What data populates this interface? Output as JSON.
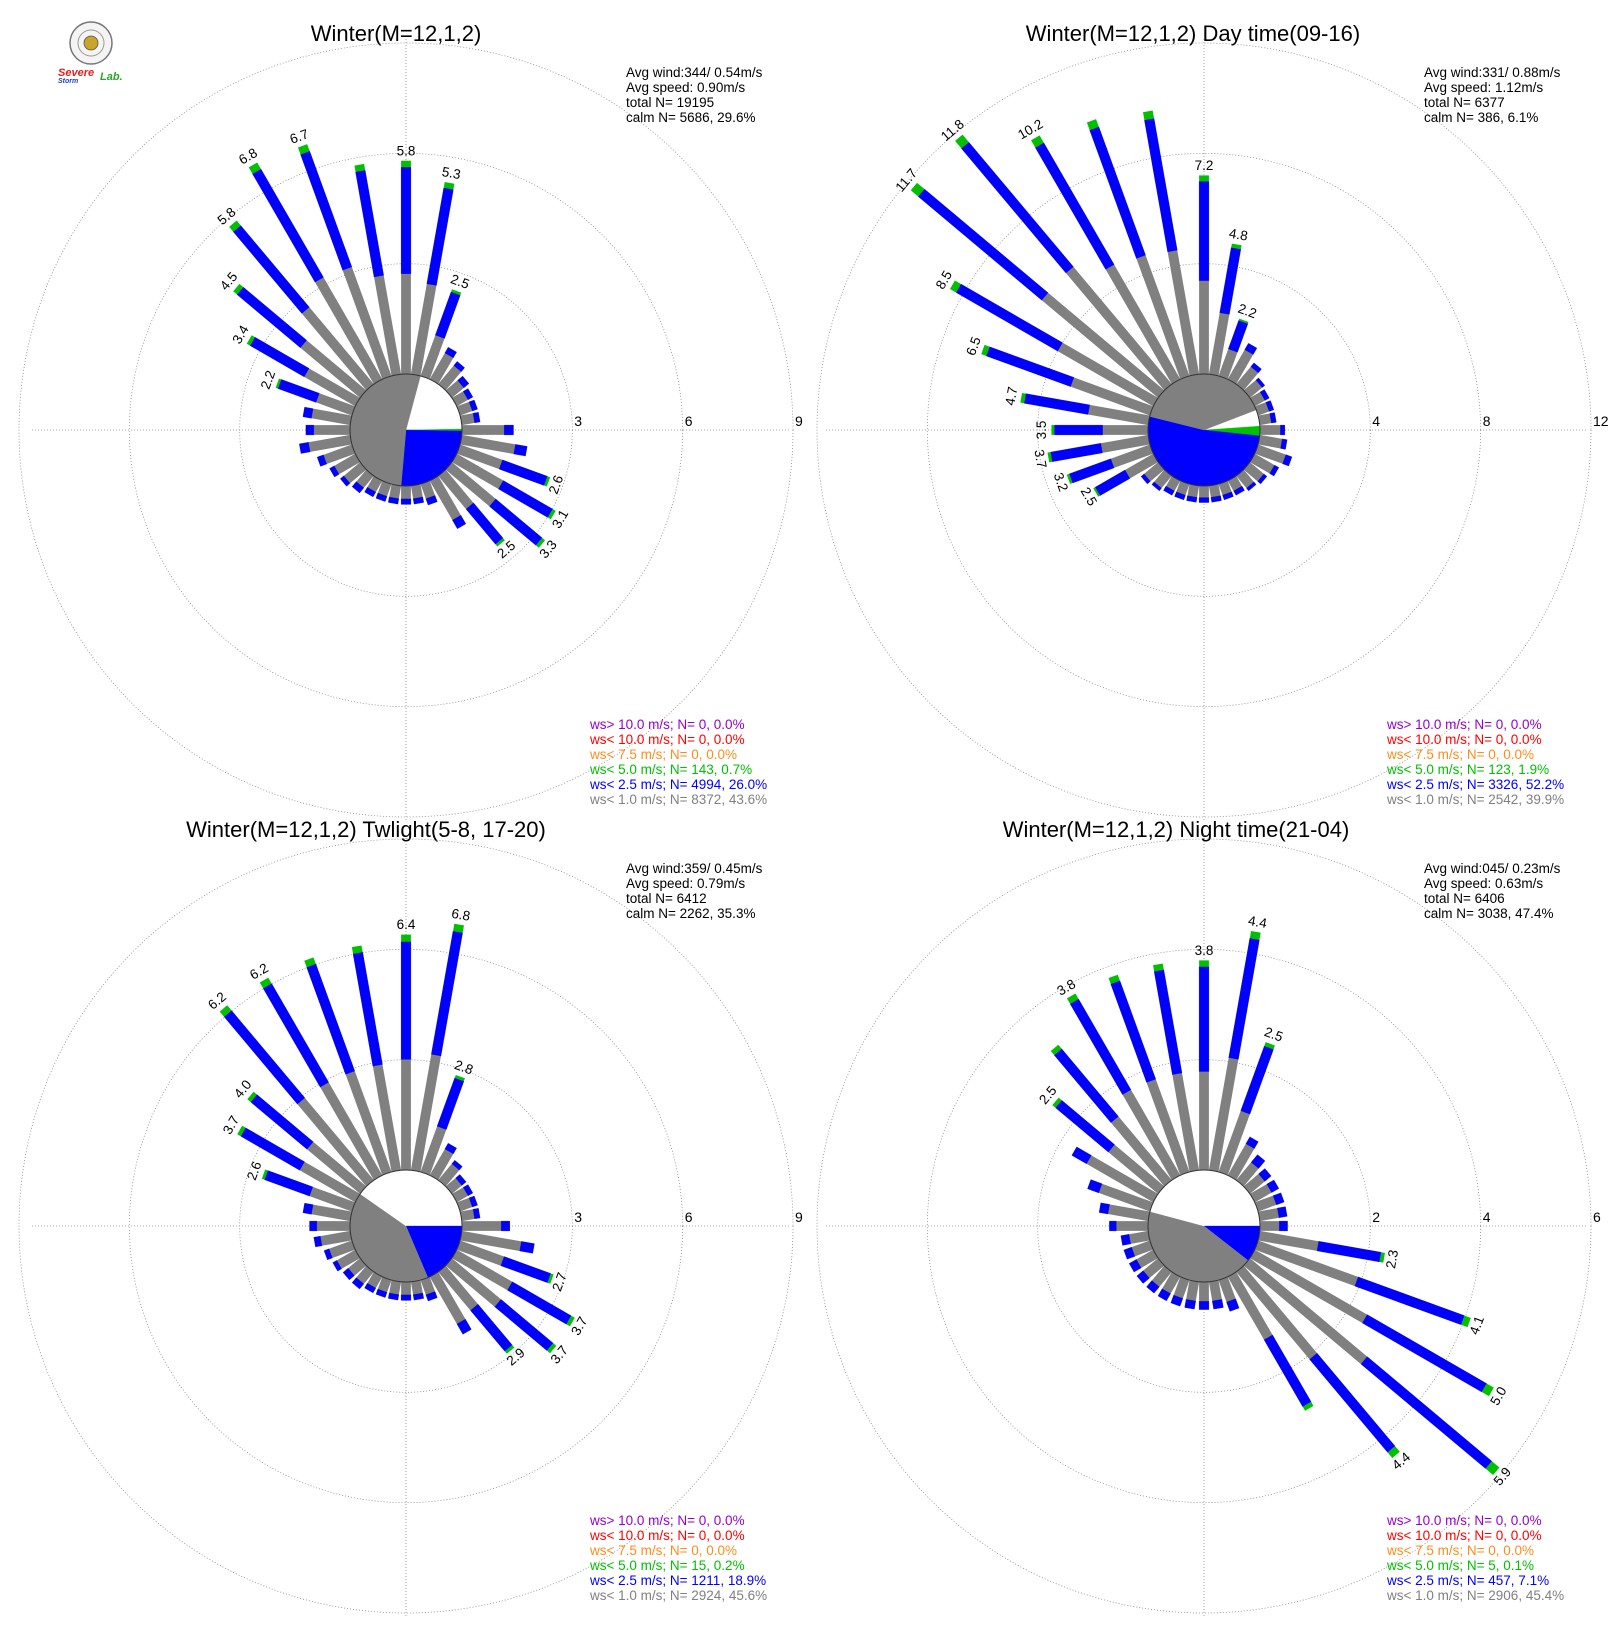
{
  "logo": {
    "text": "Severe Storm Lab.",
    "colors": {
      "severe": "#e0201c",
      "storm": "#1a3fd0",
      "lab": "#2aa52a",
      "seal": "#c9a52a"
    }
  },
  "colors": {
    "calm_fill": "#ffffff",
    "grid": "#8a8a8a",
    "ws_gt_10": "#9400d3",
    "ws_lt_10": "#ff0000",
    "ws_lt_7_5": "#ff8c1a",
    "ws_lt_5": "#00c000",
    "ws_lt_2_5": "#0000ff",
    "ws_lt_1": "#808080"
  },
  "chart_data": [
    {
      "type": "wind-rose",
      "title": "Winter(M=12,1,2)",
      "stats": [
        "Avg wind:344/ 0.54m/s",
        "Avg speed: 0.90m/s",
        "total N=      19195",
        "calm N=   5686,  29.6%"
      ],
      "ring_ticks": [
        "3",
        "6",
        "9"
      ],
      "r_max": 9,
      "direction_bins": 36,
      "frequencies_percent": [
        5.8,
        5.3,
        2.5,
        1.0,
        0.8,
        0.6,
        0.5,
        0.5,
        0.5,
        1.4,
        1.8,
        2.6,
        3.1,
        3.3,
        2.5,
        1.5,
        0.6,
        0.5,
        0.5,
        0.5,
        0.5,
        0.5,
        0.6,
        0.7,
        0.8,
        1.0,
        1.4,
        1.2,
        1.3,
        2.2,
        3.4,
        4.5,
        5.8,
        6.8,
        6.7,
        5.8
      ],
      "labeled_bins": [
        0,
        1,
        2,
        11,
        12,
        13,
        14,
        29,
        30,
        31,
        32,
        33,
        34
      ],
      "calm_sectors": [
        {
          "color": "#ffffff",
          "start": 15,
          "end": 89
        },
        {
          "color": "#00c000",
          "start": 89,
          "end": 91
        },
        {
          "color": "#0000ff",
          "start": 91,
          "end": 185
        },
        {
          "color": "#808080",
          "start": 185,
          "end": 375
        }
      ],
      "legend": [
        "ws> 10.0 m/s; N=     0,  0.0%",
        "ws< 10.0 m/s; N=     0,  0.0%",
        "ws<  7.5 m/s; N=     0,  0.0%",
        "ws<  5.0 m/s; N=   143,  0.7%",
        "ws<  2.5 m/s; N=  4994, 26.0%",
        "ws<  1.0 m/s; N=  8372, 43.6%"
      ]
    },
    {
      "type": "wind-rose",
      "title": "Winter(M=12,1,2) Day time(09-16)",
      "stats": [
        "Avg wind:331/ 0.88m/s",
        "Avg speed: 1.12m/s",
        "total N=       6377",
        "calm N=    386,   6.1%"
      ],
      "ring_ticks": [
        "4",
        "8",
        "12"
      ],
      "r_max": 12,
      "direction_bins": 36,
      "frequencies_percent": [
        7.2,
        4.8,
        2.2,
        1.5,
        1.0,
        0.7,
        0.6,
        0.6,
        0.6,
        0.9,
        1.0,
        1.3,
        1.0,
        0.8,
        0.7,
        0.6,
        0.6,
        0.6,
        0.6,
        0.6,
        0.6,
        0.6,
        0.7,
        0.8,
        2.5,
        3.2,
        3.7,
        3.5,
        4.7,
        6.5,
        8.5,
        11.7,
        11.8,
        10.2,
        9.9,
        9.7
      ],
      "labeled_bins": [
        0,
        1,
        2,
        24,
        25,
        26,
        27,
        28,
        29,
        30,
        31,
        32,
        33
      ],
      "calm_sectors": [
        {
          "color": "#ffffff",
          "start": 69,
          "end": 86
        },
        {
          "color": "#00c000",
          "start": 86,
          "end": 96
        },
        {
          "color": "#0000ff",
          "start": 96,
          "end": 284
        },
        {
          "color": "#808080",
          "start": 284,
          "end": 429
        }
      ],
      "legend": [
        "ws> 10.0 m/s; N=     0,  0.0%",
        "ws< 10.0 m/s; N=     0,  0.0%",
        "ws<  7.5 m/s; N=     0,  0.0%",
        "ws<  5.0 m/s; N=   123,  1.9%",
        "ws<  2.5 m/s; N=  3326, 52.2%",
        "ws<  1.0 m/s; N=  2542, 39.9%"
      ]
    },
    {
      "type": "wind-rose",
      "title": "Winter(M=12,1,2) Twlight(5-8, 17-20)",
      "stats": [
        "Avg wind:359/ 0.45m/s",
        "Avg speed: 0.79m/s",
        "total N=       6412",
        "calm N=   2262,  35.3%"
      ],
      "ring_ticks": [
        "3",
        "6",
        "9"
      ],
      "r_max": 9,
      "direction_bins": 36,
      "frequencies_percent": [
        6.4,
        6.8,
        2.8,
        1.0,
        0.7,
        0.5,
        0.5,
        0.5,
        0.5,
        1.3,
        2.0,
        2.7,
        3.7,
        3.7,
        2.9,
        1.8,
        0.6,
        0.5,
        0.5,
        0.5,
        0.5,
        0.5,
        0.6,
        0.6,
        0.7,
        0.8,
        1.0,
        1.1,
        1.3,
        2.6,
        3.7,
        4.0,
        6.2,
        6.2,
        6.2,
        6.2
      ],
      "labeled_bins": [
        0,
        1,
        2,
        11,
        12,
        13,
        14,
        29,
        30,
        31,
        32,
        33
      ],
      "calm_sectors": [
        {
          "color": "#ffffff",
          "start": 0,
          "end": 90
        },
        {
          "color": "#0000ff",
          "start": 90,
          "end": 157
        },
        {
          "color": "#808080",
          "start": 157,
          "end": 305
        },
        {
          "color": "#ffffff",
          "start": 305,
          "end": 360
        }
      ],
      "legend": [
        "ws> 10.0 m/s; N=     0,  0.0%",
        "ws< 10.0 m/s; N=     0,  0.0%",
        "ws<  7.5 m/s; N=     0,  0.0%",
        "ws<  5.0 m/s; N=    15,  0.2%",
        "ws<  2.5 m/s; N=  1211, 18.9%",
        "ws<  1.0 m/s; N=  2924, 45.6%"
      ]
    },
    {
      "type": "wind-rose",
      "title": "Winter(M=12,1,2) Night time(21-04)",
      "stats": [
        "Avg wind:045/ 0.23m/s",
        "Avg speed: 0.63m/s",
        "total N=       6406",
        "calm N=   3038,  47.4%"
      ],
      "ring_ticks": [
        "2",
        "4",
        "6"
      ],
      "r_max": 6,
      "direction_bins": 36,
      "frequencies_percent": [
        3.8,
        4.4,
        2.5,
        0.8,
        0.6,
        0.5,
        0.5,
        0.5,
        0.5,
        0.5,
        2.3,
        4.1,
        5.0,
        5.9,
        4.4,
        2.8,
        0.6,
        0.5,
        0.5,
        0.5,
        0.5,
        0.5,
        0.5,
        0.5,
        0.5,
        0.5,
        0.5,
        0.7,
        0.9,
        1.2,
        1.7,
        2.5,
        3.2,
        3.8,
        3.8,
        3.8
      ],
      "labeled_bins": [
        0,
        1,
        2,
        10,
        11,
        12,
        13,
        14,
        31,
        33
      ],
      "calm_sectors": [
        {
          "color": "#ffffff",
          "start": 0,
          "end": 90
        },
        {
          "color": "#0000ff",
          "start": 90,
          "end": 128
        },
        {
          "color": "#808080",
          "start": 128,
          "end": 285
        },
        {
          "color": "#ffffff",
          "start": 285,
          "end": 360
        }
      ],
      "legend": [
        "ws> 10.0 m/s; N=     0,  0.0%",
        "ws< 10.0 m/s; N=     0,  0.0%",
        "ws<  7.5 m/s; N=     0,  0.0%",
        "ws<  5.0 m/s; N=     5,  0.1%",
        "ws<  2.5 m/s; N=   457,  7.1%",
        "ws<  1.0 m/s; N=  2906, 45.4%"
      ]
    }
  ]
}
